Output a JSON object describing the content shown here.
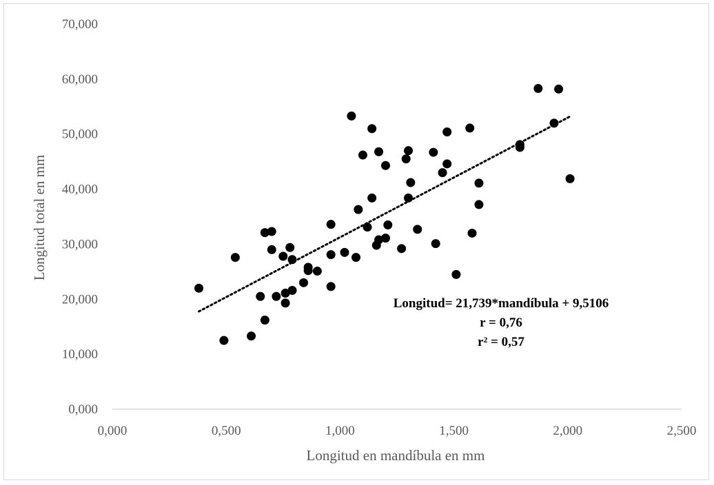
{
  "chart_data": {
    "type": "scatter",
    "xlabel": "Longitud en mandíbula en mm",
    "ylabel": "Longitud total en mm",
    "xlim": [
      0,
      2.5
    ],
    "ylim": [
      0,
      70
    ],
    "x_ticks": [
      0,
      0.5,
      1,
      1.5,
      2,
      2.5
    ],
    "x_tick_labels": [
      "0,000",
      "0,500",
      "1,000",
      "1,500",
      "2,000",
      "2,500"
    ],
    "y_ticks": [
      0,
      10,
      20,
      30,
      40,
      50,
      60,
      70
    ],
    "y_tick_labels": [
      "0,000",
      "10,000",
      "20,000",
      "30,000",
      "40,000",
      "50,000",
      "60,000",
      "70,000"
    ],
    "grid": false,
    "legend": "none",
    "marker_color": "#000000",
    "trendline": {
      "style": "dotted",
      "color": "#000000",
      "x": [
        0.38,
        2.01
      ],
      "y": [
        17.77,
        53.21
      ]
    },
    "annotations": [
      "Longitud= 21,739*mandíbula + 9,5106",
      "r = 0,76",
      "r² = 0,57"
    ],
    "points": [
      [
        0.38,
        22.0
      ],
      [
        0.49,
        12.5
      ],
      [
        0.54,
        27.6
      ],
      [
        0.61,
        13.3
      ],
      [
        0.65,
        20.5
      ],
      [
        0.67,
        32.1
      ],
      [
        0.67,
        16.2
      ],
      [
        0.7,
        32.3
      ],
      [
        0.7,
        29.0
      ],
      [
        0.72,
        20.5
      ],
      [
        0.75,
        27.8
      ],
      [
        0.76,
        21.1
      ],
      [
        0.76,
        19.3
      ],
      [
        0.78,
        29.4
      ],
      [
        0.79,
        27.2
      ],
      [
        0.79,
        21.6
      ],
      [
        0.84,
        23.0
      ],
      [
        0.86,
        25.8
      ],
      [
        0.86,
        25.2
      ],
      [
        0.9,
        25.1
      ],
      [
        0.96,
        33.6
      ],
      [
        0.96,
        28.1
      ],
      [
        0.96,
        22.3
      ],
      [
        1.02,
        28.5
      ],
      [
        1.05,
        53.3
      ],
      [
        1.07,
        27.6
      ],
      [
        1.08,
        36.3
      ],
      [
        1.1,
        46.2
      ],
      [
        1.12,
        33.1
      ],
      [
        1.14,
        51.0
      ],
      [
        1.14,
        38.4
      ],
      [
        1.16,
        29.8
      ],
      [
        1.17,
        46.8
      ],
      [
        1.17,
        30.8
      ],
      [
        1.2,
        44.3
      ],
      [
        1.2,
        31.1
      ],
      [
        1.21,
        33.5
      ],
      [
        1.27,
        29.2
      ],
      [
        1.29,
        45.5
      ],
      [
        1.3,
        47.0
      ],
      [
        1.3,
        38.4
      ],
      [
        1.31,
        41.2
      ],
      [
        1.34,
        32.7
      ],
      [
        1.41,
        46.7
      ],
      [
        1.42,
        30.1
      ],
      [
        1.45,
        43.0
      ],
      [
        1.47,
        44.6
      ],
      [
        1.47,
        50.4
      ],
      [
        1.51,
        24.5
      ],
      [
        1.57,
        51.1
      ],
      [
        1.58,
        32.0
      ],
      [
        1.61,
        41.1
      ],
      [
        1.61,
        37.2
      ],
      [
        1.79,
        48.1
      ],
      [
        1.79,
        47.6
      ],
      [
        1.87,
        58.3
      ],
      [
        1.94,
        52.0
      ],
      [
        1.96,
        58.2
      ],
      [
        2.01,
        41.9
      ]
    ]
  }
}
